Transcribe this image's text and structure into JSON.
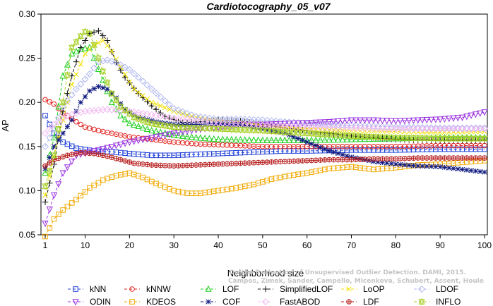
{
  "chart_data": {
    "type": "line",
    "title": "Cardiotocography_05_v07",
    "xlabel": "Neighborhood size",
    "ylabel": "AP",
    "xlim": [
      1,
      100
    ],
    "ylim": [
      0.05,
      0.3
    ],
    "xticks": [
      1,
      10,
      20,
      30,
      40,
      50,
      60,
      70,
      80,
      90,
      100
    ],
    "yticks": [
      0.05,
      0.1,
      0.15,
      0.2,
      0.25,
      0.3
    ],
    "grid": false,
    "legend_position": "bottom",
    "series": [
      {
        "name": "kNN",
        "color": "#1f3fd8",
        "marker": "square",
        "points": [
          [
            1,
            0.185
          ],
          [
            2,
            0.175
          ],
          [
            3,
            0.165
          ],
          [
            5,
            0.155
          ],
          [
            8,
            0.148
          ],
          [
            12,
            0.145
          ],
          [
            16,
            0.144
          ],
          [
            20,
            0.142
          ],
          [
            25,
            0.14
          ],
          [
            30,
            0.14
          ],
          [
            35,
            0.141
          ],
          [
            40,
            0.142
          ],
          [
            45,
            0.143
          ],
          [
            50,
            0.144
          ],
          [
            55,
            0.145
          ],
          [
            60,
            0.145
          ],
          [
            70,
            0.146
          ],
          [
            80,
            0.146
          ],
          [
            90,
            0.147
          ],
          [
            100,
            0.147
          ]
        ]
      },
      {
        "name": "kNNW",
        "color": "#e0221e",
        "marker": "circle",
        "points": [
          [
            1,
            0.203
          ],
          [
            3,
            0.198
          ],
          [
            5,
            0.188
          ],
          [
            8,
            0.178
          ],
          [
            10,
            0.172
          ],
          [
            13,
            0.168
          ],
          [
            16,
            0.165
          ],
          [
            20,
            0.161
          ],
          [
            25,
            0.158
          ],
          [
            30,
            0.155
          ],
          [
            35,
            0.153
          ],
          [
            40,
            0.152
          ],
          [
            45,
            0.151
          ],
          [
            50,
            0.15
          ],
          [
            55,
            0.15
          ],
          [
            60,
            0.15
          ],
          [
            70,
            0.15
          ],
          [
            80,
            0.15
          ],
          [
            90,
            0.151
          ],
          [
            100,
            0.151
          ]
        ]
      },
      {
        "name": "LOF",
        "color": "#1fcf1f",
        "marker": "triangle",
        "points": [
          [
            1,
            0.12
          ],
          [
            3,
            0.16
          ],
          [
            5,
            0.23
          ],
          [
            7,
            0.255
          ],
          [
            9,
            0.26
          ],
          [
            11,
            0.262
          ],
          [
            12,
            0.25
          ],
          [
            14,
            0.225
          ],
          [
            16,
            0.2
          ],
          [
            18,
            0.185
          ],
          [
            20,
            0.176
          ],
          [
            25,
            0.168
          ],
          [
            30,
            0.163
          ],
          [
            35,
            0.16
          ],
          [
            40,
            0.158
          ],
          [
            50,
            0.157
          ],
          [
            60,
            0.157
          ],
          [
            70,
            0.158
          ],
          [
            80,
            0.159
          ],
          [
            90,
            0.16
          ],
          [
            100,
            0.16
          ]
        ]
      },
      {
        "name": "SimplifiedLOF",
        "color": "#111111",
        "marker": "plus",
        "points": [
          [
            1,
            0.087
          ],
          [
            3,
            0.13
          ],
          [
            5,
            0.19
          ],
          [
            7,
            0.23
          ],
          [
            9,
            0.262
          ],
          [
            11,
            0.278
          ],
          [
            13,
            0.281
          ],
          [
            15,
            0.27
          ],
          [
            17,
            0.245
          ],
          [
            19,
            0.228
          ],
          [
            22,
            0.21
          ],
          [
            25,
            0.196
          ],
          [
            28,
            0.184
          ],
          [
            32,
            0.177
          ],
          [
            36,
            0.178
          ],
          [
            40,
            0.18
          ],
          [
            45,
            0.179
          ],
          [
            50,
            0.175
          ],
          [
            55,
            0.171
          ],
          [
            60,
            0.168
          ],
          [
            65,
            0.165
          ],
          [
            70,
            0.162
          ],
          [
            80,
            0.158
          ],
          [
            90,
            0.157
          ],
          [
            100,
            0.157
          ]
        ]
      },
      {
        "name": "LoOP",
        "color": "#f0e000",
        "marker": "x",
        "points": [
          [
            1,
            0.095
          ],
          [
            4,
            0.16
          ],
          [
            7,
            0.22
          ],
          [
            10,
            0.255
          ],
          [
            12,
            0.265
          ],
          [
            14,
            0.27
          ],
          [
            16,
            0.258
          ],
          [
            18,
            0.24
          ],
          [
            21,
            0.215
          ],
          [
            25,
            0.2
          ],
          [
            30,
            0.19
          ],
          [
            35,
            0.183
          ],
          [
            40,
            0.179
          ],
          [
            45,
            0.176
          ],
          [
            50,
            0.174
          ],
          [
            60,
            0.17
          ],
          [
            70,
            0.168
          ],
          [
            80,
            0.167
          ],
          [
            90,
            0.166
          ],
          [
            100,
            0.167
          ]
        ]
      },
      {
        "name": "LDOF",
        "color": "#b0b8f0",
        "marker": "diamond",
        "points": [
          [
            1,
            0.15
          ],
          [
            3,
            0.17
          ],
          [
            5,
            0.195
          ],
          [
            8,
            0.215
          ],
          [
            11,
            0.232
          ],
          [
            13,
            0.246
          ],
          [
            15,
            0.248
          ],
          [
            17,
            0.245
          ],
          [
            20,
            0.237
          ],
          [
            23,
            0.224
          ],
          [
            27,
            0.206
          ],
          [
            30,
            0.193
          ],
          [
            35,
            0.184
          ],
          [
            40,
            0.181
          ],
          [
            45,
            0.181
          ],
          [
            50,
            0.18
          ],
          [
            55,
            0.178
          ],
          [
            60,
            0.176
          ],
          [
            70,
            0.174
          ],
          [
            80,
            0.172
          ],
          [
            90,
            0.171
          ],
          [
            100,
            0.171
          ]
        ]
      },
      {
        "name": "ODIN",
        "color": "#9932e0",
        "marker": "invtriangle",
        "points": [
          [
            1,
            0.063
          ],
          [
            3,
            0.095
          ],
          [
            5,
            0.12
          ],
          [
            8,
            0.14
          ],
          [
            12,
            0.145
          ],
          [
            16,
            0.15
          ],
          [
            20,
            0.155
          ],
          [
            25,
            0.16
          ],
          [
            30,
            0.165
          ],
          [
            35,
            0.169
          ],
          [
            40,
            0.172
          ],
          [
            45,
            0.175
          ],
          [
            50,
            0.175
          ],
          [
            55,
            0.176
          ],
          [
            60,
            0.177
          ],
          [
            65,
            0.178
          ],
          [
            70,
            0.18
          ],
          [
            75,
            0.18
          ],
          [
            80,
            0.179
          ],
          [
            85,
            0.18
          ],
          [
            90,
            0.181
          ],
          [
            95,
            0.183
          ],
          [
            100,
            0.189
          ]
        ]
      },
      {
        "name": "KDEOS",
        "color": "#f0a800",
        "marker": "square",
        "points": [
          [
            1,
            0.048
          ],
          [
            3,
            0.068
          ],
          [
            5,
            0.078
          ],
          [
            8,
            0.09
          ],
          [
            11,
            0.103
          ],
          [
            14,
            0.112
          ],
          [
            17,
            0.117
          ],
          [
            20,
            0.12
          ],
          [
            23,
            0.115
          ],
          [
            26,
            0.108
          ],
          [
            30,
            0.1
          ],
          [
            33,
            0.097
          ],
          [
            36,
            0.097
          ],
          [
            40,
            0.1
          ],
          [
            44,
            0.103
          ],
          [
            48,
            0.107
          ],
          [
            52,
            0.113
          ],
          [
            56,
            0.117
          ],
          [
            60,
            0.12
          ],
          [
            65,
            0.125
          ],
          [
            70,
            0.127
          ],
          [
            75,
            0.124
          ],
          [
            80,
            0.126
          ],
          [
            85,
            0.129
          ],
          [
            90,
            0.13
          ],
          [
            95,
            0.132
          ],
          [
            100,
            0.134
          ]
        ]
      },
      {
        "name": "COF",
        "color": "#101a80",
        "marker": "asterisk",
        "points": [
          [
            1,
            0.125
          ],
          [
            3,
            0.15
          ],
          [
            5,
            0.165
          ],
          [
            7,
            0.18
          ],
          [
            9,
            0.2
          ],
          [
            11,
            0.213
          ],
          [
            13,
            0.218
          ],
          [
            15,
            0.215
          ],
          [
            17,
            0.205
          ],
          [
            19,
            0.192
          ],
          [
            22,
            0.183
          ],
          [
            26,
            0.178
          ],
          [
            30,
            0.175
          ],
          [
            35,
            0.175
          ],
          [
            40,
            0.176
          ],
          [
            45,
            0.175
          ],
          [
            50,
            0.17
          ],
          [
            55,
            0.165
          ],
          [
            60,
            0.155
          ],
          [
            65,
            0.145
          ],
          [
            70,
            0.138
          ],
          [
            75,
            0.133
          ],
          [
            80,
            0.13
          ],
          [
            85,
            0.128
          ],
          [
            90,
            0.127
          ],
          [
            95,
            0.124
          ],
          [
            100,
            0.121
          ]
        ]
      },
      {
        "name": "FastABOD",
        "color": "#f2b8f2",
        "marker": "diamond",
        "points": [
          [
            1,
            0.165
          ],
          [
            3,
            0.175
          ],
          [
            6,
            0.185
          ],
          [
            10,
            0.19
          ],
          [
            15,
            0.192
          ],
          [
            20,
            0.19
          ],
          [
            25,
            0.186
          ],
          [
            30,
            0.182
          ],
          [
            40,
            0.177
          ],
          [
            50,
            0.174
          ],
          [
            60,
            0.172
          ],
          [
            70,
            0.171
          ],
          [
            80,
            0.17
          ],
          [
            90,
            0.17
          ],
          [
            100,
            0.17
          ]
        ]
      },
      {
        "name": "LDF",
        "color": "#b82020",
        "marker": "oplus",
        "points": [
          [
            1,
            0.128
          ],
          [
            3,
            0.135
          ],
          [
            6,
            0.14
          ],
          [
            9,
            0.143
          ],
          [
            12,
            0.142
          ],
          [
            15,
            0.139
          ],
          [
            18,
            0.135
          ],
          [
            21,
            0.131
          ],
          [
            25,
            0.129
          ],
          [
            30,
            0.128
          ],
          [
            35,
            0.129
          ],
          [
            40,
            0.13
          ],
          [
            45,
            0.131
          ],
          [
            50,
            0.132
          ],
          [
            55,
            0.133
          ],
          [
            60,
            0.134
          ],
          [
            65,
            0.135
          ],
          [
            70,
            0.135
          ],
          [
            75,
            0.136
          ],
          [
            80,
            0.136
          ],
          [
            85,
            0.137
          ],
          [
            90,
            0.137
          ],
          [
            95,
            0.137
          ],
          [
            100,
            0.137
          ]
        ]
      },
      {
        "name": "INFLO",
        "color": "#a8d028",
        "marker": "hourglass",
        "points": [
          [
            1,
            0.105
          ],
          [
            3,
            0.14
          ],
          [
            5,
            0.2
          ],
          [
            7,
            0.262
          ],
          [
            9,
            0.275
          ],
          [
            10,
            0.28
          ],
          [
            11,
            0.278
          ],
          [
            12,
            0.265
          ],
          [
            14,
            0.235
          ],
          [
            16,
            0.21
          ],
          [
            18,
            0.195
          ],
          [
            21,
            0.183
          ],
          [
            25,
            0.176
          ],
          [
            30,
            0.172
          ],
          [
            40,
            0.17
          ],
          [
            50,
            0.168
          ],
          [
            60,
            0.165
          ],
          [
            70,
            0.162
          ],
          [
            80,
            0.16
          ],
          [
            90,
            0.159
          ],
          [
            100,
            0.159
          ]
        ]
      }
    ]
  },
  "legend_rows": [
    [
      "kNN",
      "kNNW",
      "LOF",
      "SimplifiedLOF",
      "LoOP",
      "LDOF"
    ],
    [
      "ODIN",
      "KDEOS",
      "COF",
      "FastABOD",
      "LDF",
      "INFLO"
    ]
  ],
  "watermark": {
    "line1": "Campos, Zimek, Sander, Campello, Micenkova, Schubert, Assent, Houle",
    "line2": "On the Evaluation of Unsupervised Outlier Detection. DAMI, 2015."
  }
}
